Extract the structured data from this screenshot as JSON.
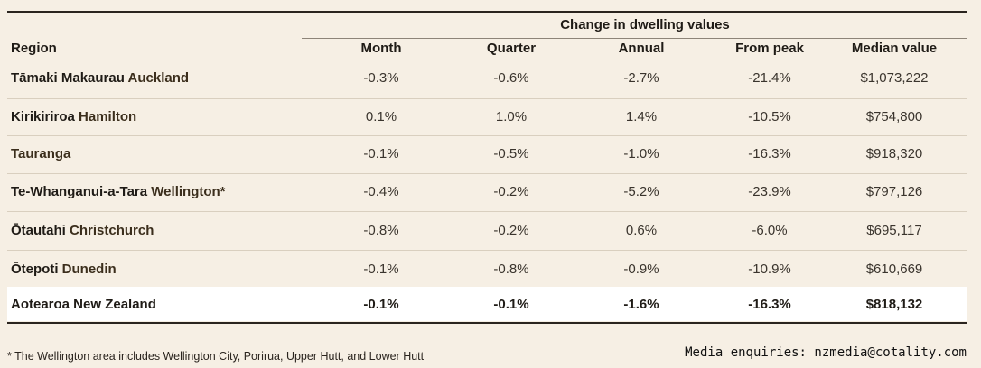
{
  "table": {
    "group_header": "Change in dwelling values",
    "columns": [
      "Region",
      "Month",
      "Quarter",
      "Annual",
      "From peak",
      "Median  value"
    ],
    "rows": [
      {
        "region_prefix": "Tāmaki Makaurau",
        "region_city": "Auckland",
        "month": "-0.3%",
        "quarter": "-0.6%",
        "annual": "-2.7%",
        "peak": "-21.4%",
        "median": "$1,073,222"
      },
      {
        "region_prefix": "Kirikiriroa",
        "region_city": "Hamilton",
        "month": "0.1%",
        "quarter": "1.0%",
        "annual": "1.4%",
        "peak": "-10.5%",
        "median": "$754,800"
      },
      {
        "region_prefix": "",
        "region_city": "Tauranga",
        "month": "-0.1%",
        "quarter": "-0.5%",
        "annual": "-1.0%",
        "peak": "-16.3%",
        "median": "$918,320"
      },
      {
        "region_prefix": "Te-Whanganui-a-Tara",
        "region_city": "Wellington*",
        "month": "-0.4%",
        "quarter": "-0.2%",
        "annual": "-5.2%",
        "peak": "-23.9%",
        "median": "$797,126"
      },
      {
        "region_prefix": "Ōtautahi",
        "region_city": "Christchurch",
        "month": "-0.8%",
        "quarter": "-0.2%",
        "annual": "0.6%",
        "peak": "-6.0%",
        "median": "$695,117"
      },
      {
        "region_prefix": "Ōtepoti",
        "region_city": "Dunedin",
        "month": "-0.1%",
        "quarter": "-0.8%",
        "annual": "-0.9%",
        "peak": "-10.9%",
        "median": "$610,669"
      }
    ],
    "total": {
      "region": "Aotearoa New Zealand",
      "month": "-0.1%",
      "quarter": "-0.1%",
      "annual": "-1.6%",
      "peak": "-16.3%",
      "median": "$818,132"
    }
  },
  "footnote": "* The Wellington area includes Wellington City, Porirua, Upper Hutt, and Lower Hutt",
  "contact": "Media enquiries: nzmedia@cotality.com",
  "colors": {
    "background": "#f6efe4",
    "total_row_bg": "#ffffff",
    "rule": "#2a241e"
  }
}
